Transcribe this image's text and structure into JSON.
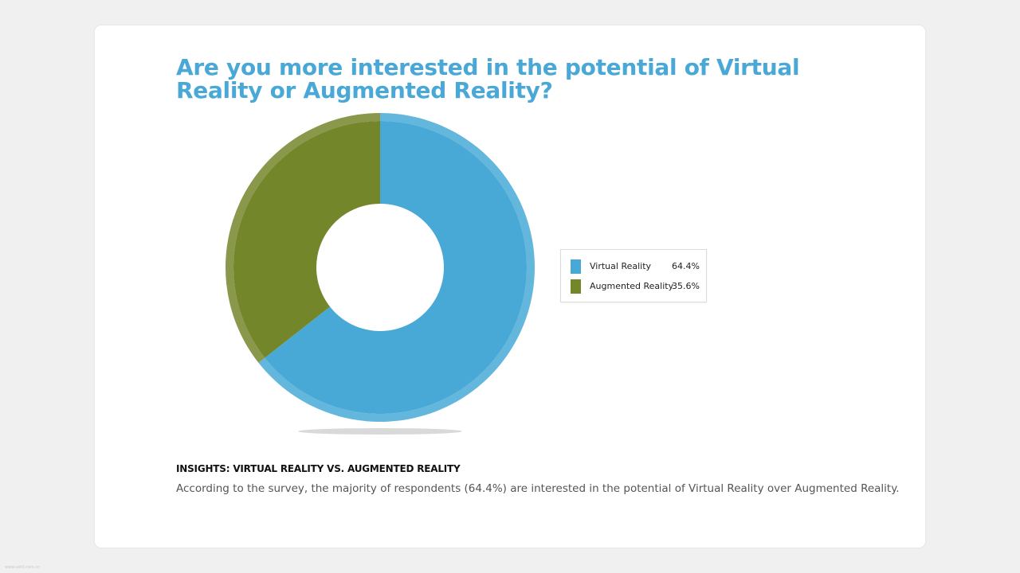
{
  "chart_data": {
    "type": "pie",
    "donut": true,
    "title": "Are you more interested in the potential of Virtual Reality or Augmented Reality?",
    "categories": [
      "Virtual Reality",
      "Augmented Reality"
    ],
    "values": [
      64.4,
      35.6
    ],
    "value_labels": [
      "64.4%",
      "35.6%"
    ],
    "colors": [
      "#48a9d6",
      "#74862a"
    ],
    "legend_position": "right"
  },
  "insights": {
    "heading": "INSIGHTS: VIRTUAL REALITY VS. AUGMENTED REALITY",
    "text": "According to the survey, the majority of respondents (64.4%) are interested in the potential of Virtual Reality over Augmented Reality."
  },
  "watermark": "www.ustit.com.cn"
}
